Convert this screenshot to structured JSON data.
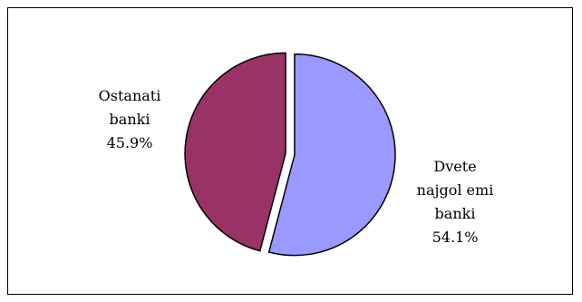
{
  "chart_data": {
    "type": "pie",
    "title": "",
    "slices": [
      {
        "label_lines": [
          "Dvete",
          "najgol emi",
          "banki"
        ],
        "value": 54.1,
        "value_label": "54.1%",
        "color": "#9999ff"
      },
      {
        "label_lines": [
          "Ostanati",
          "banki"
        ],
        "value": 45.9,
        "value_label": "45.9%",
        "color": "#993366"
      }
    ],
    "exploded": true,
    "legend": "none"
  }
}
